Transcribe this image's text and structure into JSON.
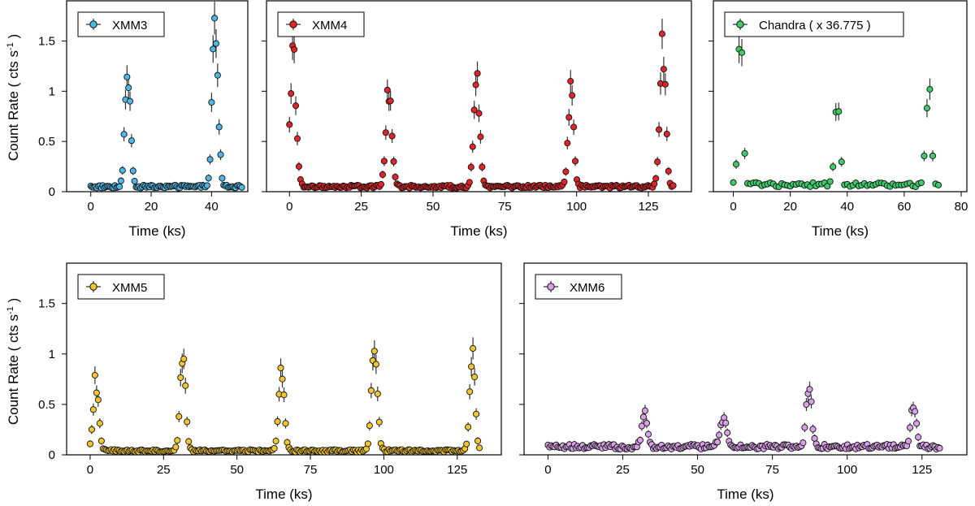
{
  "figure": {
    "ylabel_main": "Count Rate ( cts s",
    "ylabel_sup": "-1",
    "ylabel_end": " )"
  },
  "chart_data": [
    {
      "type": "scatter",
      "label": "XMM3",
      "color": "#4db8e8",
      "xlabel": "Time (ks)",
      "xlim": [
        -8,
        52
      ],
      "ylim": [
        0,
        1.9
      ],
      "xticks": [
        0,
        20,
        40
      ],
      "yticks": [
        0,
        0.5,
        1,
        1.5
      ],
      "show_ytick_labels": true,
      "baseline": 0.05,
      "sample_step": 0.5,
      "x_end": 50,
      "flares": [
        {
          "center": 12.2,
          "peak": 1.2,
          "width": 0.9
        },
        {
          "center": 41.2,
          "peak": 1.62,
          "width": 0.95
        }
      ]
    },
    {
      "type": "scatter",
      "label": "XMM4",
      "color": "#e0242a",
      "xlabel": "Time (ks)",
      "xlim": [
        -8,
        140
      ],
      "ylim": [
        0,
        1.9
      ],
      "xticks": [
        0,
        25,
        50,
        75,
        100,
        125
      ],
      "yticks": [
        0,
        0.5,
        1,
        1.5
      ],
      "show_ytick_labels": false,
      "baseline": 0.05,
      "sample_step": 0.55,
      "x_end": 134,
      "flares": [
        {
          "center": 1.2,
          "peak": 1.3,
          "width": 1.1
        },
        {
          "center": 34.6,
          "peak": 1.0,
          "width": 1.0
        },
        {
          "center": 65.2,
          "peak": 1.15,
          "width": 1.0
        },
        {
          "center": 98.0,
          "peak": 1.0,
          "width": 0.9
        },
        {
          "center": 130.0,
          "peak": 1.38,
          "width": 1.0
        }
      ]
    },
    {
      "type": "scatter",
      "label": "Chandra ( x 36.775 )",
      "color": "#3dcc6b",
      "xlabel": "Time (ks)",
      "xlim": [
        -7,
        82
      ],
      "ylim": [
        0,
        1.9
      ],
      "xticks": [
        0,
        20,
        40,
        60,
        80
      ],
      "yticks": [
        0,
        0.5,
        1,
        1.5
      ],
      "show_ytick_labels": false,
      "baseline": 0.07,
      "sample_step": 1.0,
      "x_end": 72,
      "flares": [
        {
          "center": 2.6,
          "peak": 1.7,
          "width": 0.8
        },
        {
          "center": 36.5,
          "peak": 0.8,
          "width": 0.9
        },
        {
          "center": 68.5,
          "peak": 1.05,
          "width": 0.9
        }
      ]
    },
    {
      "type": "scatter",
      "label": "XMM5",
      "color": "#f2c630",
      "xlabel": "Time (ks)",
      "xlim": [
        -8,
        140
      ],
      "ylim": [
        0,
        1.9
      ],
      "xticks": [
        0,
        25,
        50,
        75,
        100,
        125
      ],
      "yticks": [
        0,
        0.5,
        1,
        1.5
      ],
      "show_ytick_labels": true,
      "baseline": 0.04,
      "sample_step": 0.55,
      "x_end": 133,
      "flares": [
        {
          "center": 2.0,
          "peak": 0.7,
          "width": 0.9
        },
        {
          "center": 31.6,
          "peak": 0.95,
          "width": 0.9
        },
        {
          "center": 65.2,
          "peak": 0.78,
          "width": 0.95
        },
        {
          "center": 96.8,
          "peak": 1.0,
          "width": 1.0
        },
        {
          "center": 130.2,
          "peak": 0.9,
          "width": 0.9
        }
      ]
    },
    {
      "type": "scatter",
      "label": "XMM6",
      "color": "#d9a0e8",
      "xlabel": "Time (ks)",
      "xlim": [
        -8,
        140
      ],
      "ylim": [
        0,
        1.9
      ],
      "xticks": [
        0,
        25,
        50,
        75,
        100,
        125
      ],
      "yticks": [
        0,
        0.5,
        1,
        1.5
      ],
      "show_ytick_labels": false,
      "baseline": 0.08,
      "sample_step": 0.55,
      "x_end": 131,
      "flares": [
        {
          "center": 32.2,
          "peak": 0.34,
          "width": 0.9
        },
        {
          "center": 58.5,
          "peak": 0.28,
          "width": 1.1
        },
        {
          "center": 87.2,
          "peak": 0.58,
          "width": 0.9
        },
        {
          "center": 122.2,
          "peak": 0.42,
          "width": 0.9
        }
      ]
    }
  ]
}
